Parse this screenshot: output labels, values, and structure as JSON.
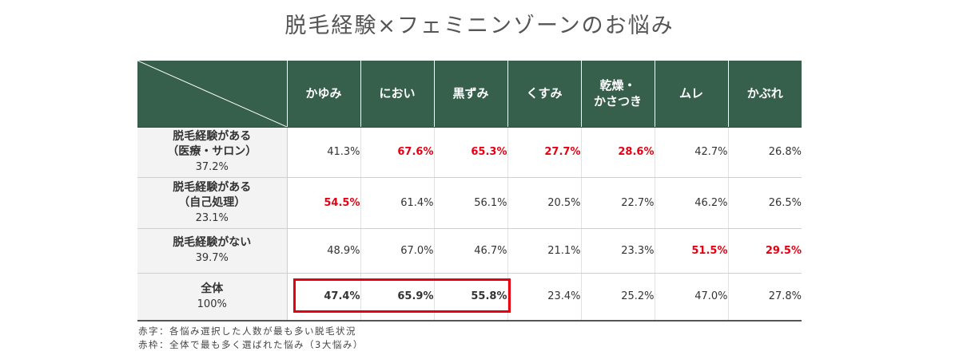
{
  "title": "脱毛経験×フェミニンゾーンのお悩み",
  "columns": [
    "かゆみ",
    "におい",
    "黒ずみ",
    "くすみ",
    "乾燥・\nかさつき",
    "ムレ",
    "かぶれ"
  ],
  "rows": [
    {
      "label": "脱毛経験がある\n（医療・サロン）",
      "share": "37.2%",
      "cells": [
        {
          "value": "41.3%",
          "red": false
        },
        {
          "value": "67.6%",
          "red": true
        },
        {
          "value": "65.3%",
          "red": true
        },
        {
          "value": "27.7%",
          "red": true
        },
        {
          "value": "28.6%",
          "red": true
        },
        {
          "value": "42.7%",
          "red": false
        },
        {
          "value": "26.8%",
          "red": false
        }
      ]
    },
    {
      "label": "脱毛経験がある\n（自己処理）",
      "share": "23.1%",
      "cells": [
        {
          "value": "54.5%",
          "red": true
        },
        {
          "value": "61.4%",
          "red": false
        },
        {
          "value": "56.1%",
          "red": false
        },
        {
          "value": "20.5%",
          "red": false
        },
        {
          "value": "22.7%",
          "red": false
        },
        {
          "value": "46.2%",
          "red": false
        },
        {
          "value": "26.5%",
          "red": false
        }
      ]
    },
    {
      "label": "脱毛経験がない",
      "share": "39.7%",
      "cells": [
        {
          "value": "48.9%",
          "red": false
        },
        {
          "value": "67.0%",
          "red": false
        },
        {
          "value": "46.7%",
          "red": false
        },
        {
          "value": "21.1%",
          "red": false
        },
        {
          "value": "23.3%",
          "red": false
        },
        {
          "value": "51.5%",
          "red": true
        },
        {
          "value": "29.5%",
          "red": true
        }
      ]
    },
    {
      "label": "全体",
      "share": "100%",
      "cells": [
        {
          "value": "47.4%",
          "red": false,
          "bold": true
        },
        {
          "value": "65.9%",
          "red": false,
          "bold": true
        },
        {
          "value": "55.8%",
          "red": false,
          "bold": true
        },
        {
          "value": "23.4%",
          "red": false
        },
        {
          "value": "25.2%",
          "red": false
        },
        {
          "value": "47.0%",
          "red": false
        },
        {
          "value": "27.8%",
          "red": false
        }
      ]
    }
  ],
  "notes": [
    "赤字：各悩み選択した人数が最も多い脱毛状況",
    "赤枠：全体で最も多く選ばれた悩み（3大悩み）"
  ],
  "colors": {
    "header_bg": "#365f4c",
    "accent_red": "#e60012",
    "row_header_bg": "#f3f3f3"
  }
}
